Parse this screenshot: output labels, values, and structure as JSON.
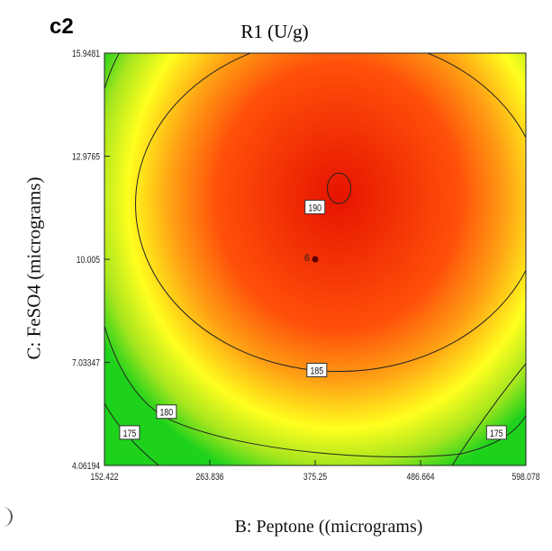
{
  "panel_label": "c2",
  "chart_data": {
    "type": "heatmap",
    "subtype": "contour",
    "title": "R1 (U/g)",
    "xlabel": "B: Peptone ((micrograms)",
    "ylabel": "C: FeSO4 (micrograms)",
    "xlim": [
      152.422,
      598.078
    ],
    "ylim": [
      4.06194,
      15.9481
    ],
    "x_ticks": [
      "152.422",
      "263.836",
      "375.25",
      "486.664",
      "598.078"
    ],
    "y_ticks": [
      "4.06194",
      "7.03347",
      "10.005",
      "12.9765",
      "15.9481"
    ],
    "colormap": [
      "#1ed21c",
      "#a8e61e",
      "#ffff1e",
      "#ffa014",
      "#ff500a",
      "#e61400"
    ],
    "response_center": {
      "x": 400,
      "y": 11.8,
      "value": 191
    },
    "contour_levels": [
      {
        "value": 175,
        "label": "175",
        "labels": [
          [
            179,
            5.0
          ],
          [
            567,
            5.0
          ]
        ]
      },
      {
        "value": 180,
        "label": "180",
        "labels": [
          [
            218,
            5.6
          ]
        ]
      },
      {
        "value": 185,
        "label": "185",
        "labels": [
          [
            377,
            6.8
          ]
        ]
      },
      {
        "value": 190,
        "label": "190",
        "labels": [
          [
            375,
            11.5
          ]
        ]
      }
    ],
    "design_point": {
      "label": "6",
      "x": 375.25,
      "y": 10.005
    },
    "legend": "none"
  }
}
